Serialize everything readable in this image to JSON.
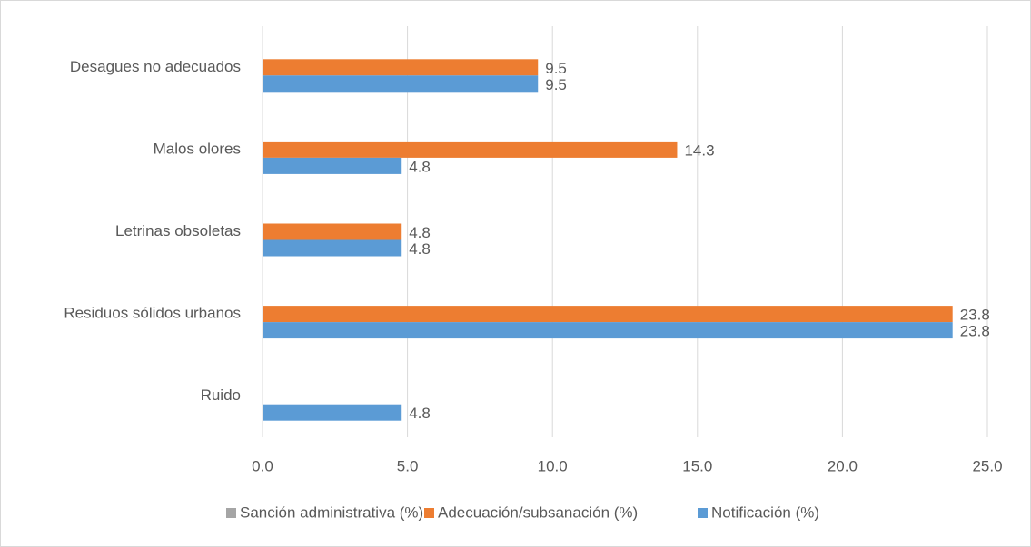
{
  "chart_data": {
    "type": "bar",
    "orientation": "horizontal",
    "categories": [
      "Desagues no adecuados",
      "Malos olores",
      "Letrinas obsoletas",
      "Residuos sólidos urbanos",
      "Ruido"
    ],
    "series": [
      {
        "name": "Sanción administrativa (%)",
        "color": "#a5a5a5",
        "values": [
          null,
          null,
          null,
          null,
          null
        ]
      },
      {
        "name": "Adecuación/subsanación (%)",
        "color": "#ed7d31",
        "values": [
          9.5,
          14.3,
          4.8,
          23.8,
          null
        ]
      },
      {
        "name": "Notificación (%)",
        "color": "#5b9bd5",
        "values": [
          9.5,
          4.8,
          4.8,
          23.8,
          4.8
        ]
      }
    ],
    "xlim": [
      0,
      25
    ],
    "xticks": [
      {
        "value": 0,
        "label": "0.0"
      },
      {
        "value": 5,
        "label": "5.0"
      },
      {
        "value": 10,
        "label": "10.0"
      },
      {
        "value": 15,
        "label": "15.0"
      },
      {
        "value": 20,
        "label": "20.0"
      },
      {
        "value": 25,
        "label": "25.0"
      }
    ],
    "grid": true,
    "legend": "bottom"
  }
}
